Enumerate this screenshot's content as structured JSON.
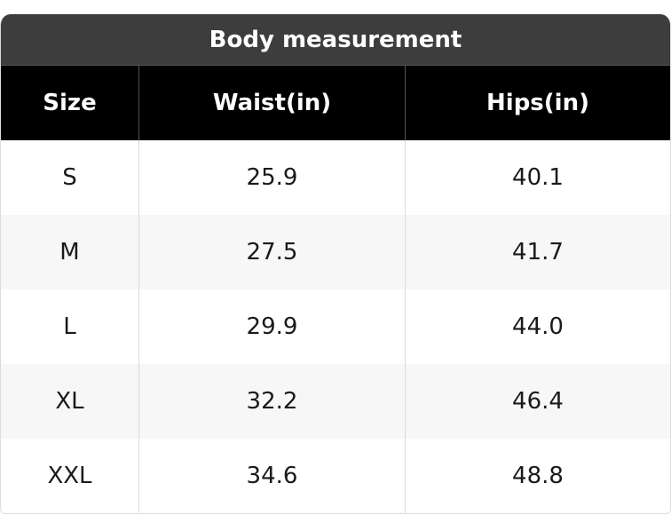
{
  "table": {
    "title": "Body measurement",
    "columns": [
      "Size",
      "Waist(in)",
      "Hips(in)"
    ],
    "rows": [
      [
        "S",
        "25.9",
        "40.1"
      ],
      [
        "M",
        "27.5",
        "41.7"
      ],
      [
        "L",
        "29.9",
        "44.0"
      ],
      [
        "XL",
        "32.2",
        "46.4"
      ],
      [
        "XXL",
        "34.6",
        "48.8"
      ]
    ]
  }
}
